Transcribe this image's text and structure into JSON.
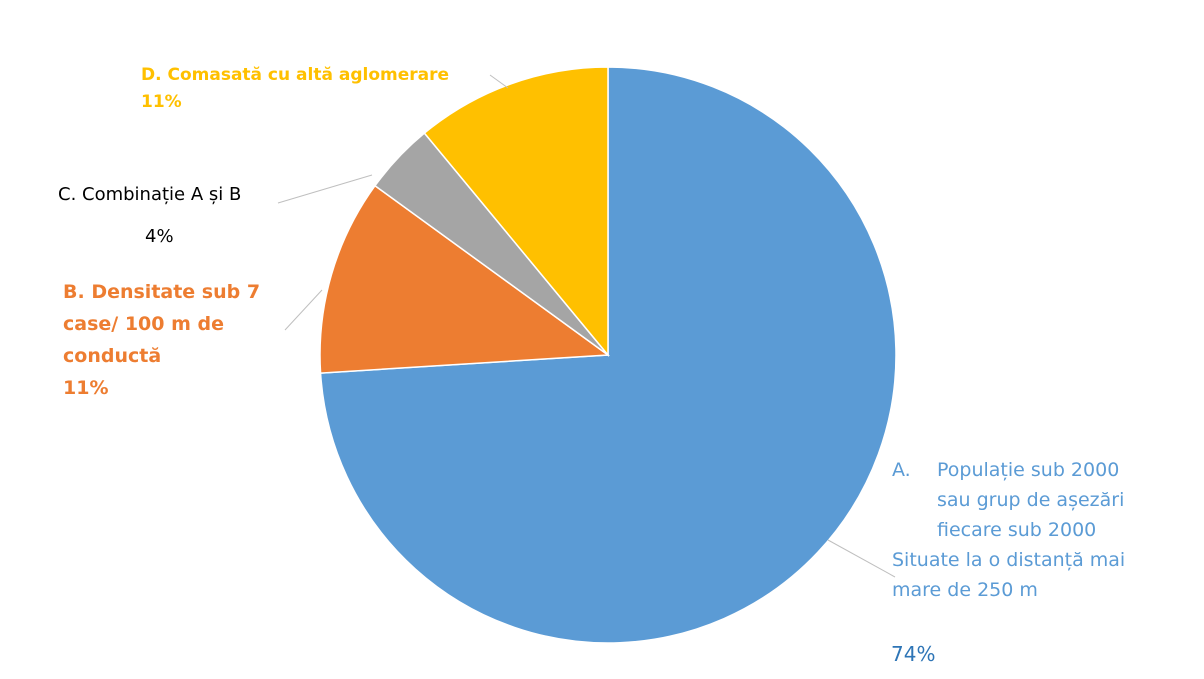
{
  "chart_data": {
    "type": "pie",
    "slices": [
      {
        "key": "A",
        "label_lines": [
          "Populație sub 2000",
          "sau grup de așezări",
          "fiecare sub 2000"
        ],
        "marker": "A.",
        "extra_lines": [
          "Situate la o distanță mai",
          "mare de 250 m"
        ],
        "percent_label": "74%",
        "value": 74,
        "color": "#5B9BD5"
      },
      {
        "key": "B",
        "label_lines": [
          "Densitate sub 7",
          "case/ 100 m de",
          "conductă"
        ],
        "percent_label": "11%",
        "value": 11,
        "color": "#ED7D31"
      },
      {
        "key": "C",
        "label_lines": [
          "C. Combinație A și B"
        ],
        "percent_label": "4%",
        "value": 4,
        "color": "#A5A5A5"
      },
      {
        "key": "D",
        "label_lines": [
          "D. Comasată cu altă aglomerare"
        ],
        "percent_label": "11%",
        "value": 11,
        "color": "#FFC000"
      }
    ]
  },
  "labels": {
    "a_marker": "A.",
    "a_line1": "Populație sub 2000",
    "a_line2": "sau grup de așezări",
    "a_line3": "fiecare sub 2000",
    "a_line4": "Situate la o distanță mai",
    "a_line5": "mare de 250 m",
    "a_pct": "74%",
    "b_line1": "B. Densitate sub 7",
    "b_line2": "case/ 100 m de",
    "b_line3": "conductă",
    "b_pct": "11%",
    "c_line": "C. Combinație A și B",
    "c_pct": "4%",
    "d_line": "D. Comasată cu altă aglomerare",
    "d_pct": "11%"
  },
  "colors": {
    "a_text": "#5B9BD5",
    "a_pct_text": "#2E75B6",
    "b_text": "#ED7D31",
    "c_text": "#000000",
    "d_text": "#FFC000",
    "leader": "#BFBFBF"
  }
}
